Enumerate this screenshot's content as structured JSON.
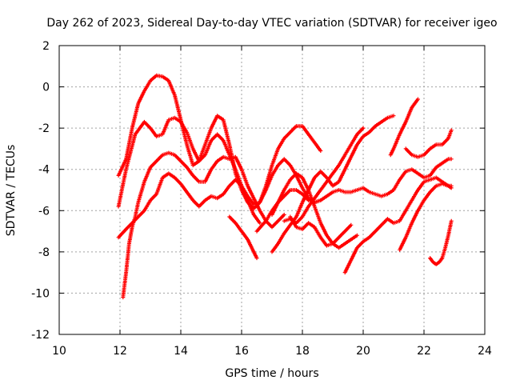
{
  "chart_data": {
    "type": "scatter",
    "title": "Day 262 of 2023, Sidereal Day-to-day VTEC variation (SDTVAR) for receiver igeo",
    "xlabel": "GPS time / hours",
    "ylabel": "SDTVAR / TECUs",
    "xlim": [
      10,
      24
    ],
    "ylim": [
      -12,
      2
    ],
    "xticks": [
      10,
      12,
      14,
      16,
      18,
      20,
      22,
      24
    ],
    "yticks": [
      2,
      0,
      -2,
      -4,
      -6,
      -8,
      -10,
      -12
    ],
    "grid": true,
    "marker": "plus",
    "color": "#ff0000",
    "series": [
      {
        "name": "trace-1",
        "x": [
          11.95,
          12.2,
          12.4,
          12.6,
          12.8,
          13.0,
          13.2,
          13.4,
          13.6,
          13.8,
          14.0,
          14.2,
          14.4,
          14.6,
          14.8,
          15.0,
          15.2,
          15.4,
          15.6,
          15.8,
          16.0,
          16.2,
          16.4,
          16.6,
          16.8,
          17.0,
          17.2,
          17.4,
          17.6,
          17.8,
          18.0,
          18.2,
          18.4,
          18.6
        ],
        "y": [
          -4.3,
          -3.5,
          -2.0,
          -0.8,
          -0.2,
          0.3,
          0.55,
          0.5,
          0.3,
          -0.4,
          -1.6,
          -2.8,
          -3.8,
          -3.6,
          -2.8,
          -2.0,
          -1.4,
          -1.6,
          -2.8,
          -4.2,
          -5.0,
          -5.6,
          -5.9,
          -5.6,
          -4.8,
          -3.8,
          -3.0,
          -2.5,
          -2.2,
          -1.9,
          -1.9,
          -2.3,
          -2.7,
          -3.1
        ]
      },
      {
        "name": "trace-2",
        "x": [
          11.95,
          12.2,
          12.5,
          12.8,
          13.0,
          13.2,
          13.4,
          13.6,
          13.8,
          14.0,
          14.2,
          14.4,
          14.6,
          14.8,
          15.0,
          15.2,
          15.4,
          15.6,
          15.8,
          16.0,
          16.2,
          16.4,
          16.6
        ],
        "y": [
          -5.8,
          -4.0,
          -2.3,
          -1.7,
          -2.0,
          -2.4,
          -2.3,
          -1.6,
          -1.5,
          -1.7,
          -2.2,
          -3.0,
          -3.6,
          -3.3,
          -2.6,
          -2.3,
          -2.6,
          -3.3,
          -4.0,
          -4.8,
          -5.5,
          -6.2,
          -6.6
        ]
      },
      {
        "name": "trace-3",
        "x": [
          11.95,
          12.2,
          12.4,
          12.6,
          12.8,
          13.0,
          13.2,
          13.4,
          13.6,
          13.8,
          14.0,
          14.2,
          14.4,
          14.6,
          14.8,
          15.0,
          15.2,
          15.4,
          15.6,
          15.8,
          16.0,
          16.2,
          16.4,
          16.6,
          16.8,
          17.0,
          17.2,
          17.4,
          17.6,
          17.8,
          18.0,
          18.2,
          18.4,
          18.6
        ],
        "y": [
          -7.3,
          -6.9,
          -6.6,
          -6.3,
          -6.0,
          -5.5,
          -5.2,
          -4.4,
          -4.2,
          -4.4,
          -4.7,
          -5.1,
          -5.5,
          -5.8,
          -5.5,
          -5.3,
          -5.4,
          -5.2,
          -4.8,
          -4.5,
          -4.8,
          -5.3,
          -5.7,
          -5.6,
          -5.0,
          -4.3,
          -3.8,
          -3.5,
          -3.8,
          -4.3,
          -4.9,
          -5.4,
          -5.6,
          -5.5
        ]
      },
      {
        "name": "trace-4",
        "x": [
          12.1,
          12.2,
          12.3,
          12.4,
          12.5,
          12.6,
          12.8,
          13.0,
          13.2,
          13.4,
          13.6,
          13.8,
          14.0,
          14.2,
          14.4,
          14.6,
          14.8,
          15.0,
          15.2,
          15.4,
          15.6,
          15.8,
          16.0,
          16.2,
          16.4,
          16.6,
          16.8,
          17.0,
          17.2,
          17.4
        ],
        "y": [
          -10.2,
          -9.0,
          -7.6,
          -6.8,
          -6.3,
          -5.6,
          -4.6,
          -3.9,
          -3.6,
          -3.3,
          -3.2,
          -3.3,
          -3.6,
          -3.9,
          -4.3,
          -4.6,
          -4.6,
          -4.0,
          -3.6,
          -3.4,
          -3.5,
          -3.4,
          -4.0,
          -4.8,
          -5.4,
          -6.0,
          -6.5,
          -6.8,
          -6.5,
          -6.2
        ]
      },
      {
        "name": "trace-5",
        "x": [
          15.6,
          15.8,
          16.0,
          16.2,
          16.4,
          16.5
        ],
        "y": [
          -6.3,
          -6.6,
          -7.0,
          -7.4,
          -8.0,
          -8.3
        ]
      },
      {
        "name": "trace-6",
        "x": [
          16.5,
          16.8,
          17.0,
          17.2,
          17.4,
          17.6,
          17.8,
          18.0,
          18.2,
          18.4,
          18.6,
          18.8,
          19.0,
          19.2,
          19.4,
          19.6,
          19.8,
          20.0,
          20.2,
          20.4,
          20.6,
          20.8,
          21.0,
          21.2,
          21.4,
          21.6,
          21.8,
          22.0,
          22.2,
          22.4,
          22.6,
          22.8,
          22.9
        ],
        "y": [
          -7.0,
          -6.5,
          -6.0,
          -5.6,
          -5.3,
          -5.0,
          -5.0,
          -5.2,
          -5.5,
          -5.6,
          -5.5,
          -5.3,
          -5.1,
          -5.0,
          -5.1,
          -5.1,
          -5.0,
          -4.9,
          -5.1,
          -5.2,
          -5.3,
          -5.2,
          -5.0,
          -4.5,
          -4.1,
          -4.0,
          -4.2,
          -4.4,
          -4.3,
          -3.9,
          -3.7,
          -3.5,
          -3.5
        ]
      },
      {
        "name": "trace-7",
        "x": [
          17.0,
          17.2,
          17.4,
          17.6,
          17.8,
          18.0,
          18.2,
          18.4,
          18.6,
          18.8,
          19.0,
          19.2,
          19.4,
          19.6,
          19.8,
          20.0,
          20.2,
          20.4,
          20.6,
          20.8,
          21.0
        ],
        "y": [
          -8.0,
          -7.6,
          -7.1,
          -6.7,
          -6.3,
          -5.6,
          -5.0,
          -4.4,
          -4.1,
          -4.4,
          -4.8,
          -4.6,
          -4.0,
          -3.4,
          -2.8,
          -2.4,
          -2.2,
          -1.9,
          -1.7,
          -1.5,
          -1.4
        ]
      },
      {
        "name": "trace-8",
        "x": [
          17.4,
          17.6,
          17.8,
          18.0,
          18.2,
          18.4,
          18.6,
          18.8,
          19.0,
          19.2,
          19.4,
          19.6,
          19.8,
          20.0
        ],
        "y": [
          -6.5,
          -6.4,
          -6.6,
          -6.3,
          -5.8,
          -5.4,
          -5.0,
          -4.6,
          -4.2,
          -3.8,
          -3.3,
          -2.8,
          -2.3,
          -2.0
        ]
      },
      {
        "name": "trace-9",
        "x": [
          17.6,
          17.8,
          18.0,
          18.2,
          18.4,
          18.6,
          18.8,
          19.0,
          19.2,
          19.4,
          19.6
        ],
        "y": [
          -6.3,
          -6.8,
          -6.9,
          -6.6,
          -6.8,
          -7.3,
          -7.7,
          -7.6,
          -7.3,
          -7.0,
          -6.7
        ]
      },
      {
        "name": "trace-10",
        "x": [
          17.0,
          17.2,
          17.4,
          17.6,
          17.8,
          18.0,
          18.2,
          18.4,
          18.6,
          18.8,
          19.0,
          19.2,
          19.4,
          19.6,
          19.8
        ],
        "y": [
          -6.2,
          -5.6,
          -5.0,
          -4.5,
          -4.2,
          -4.4,
          -5.0,
          -5.8,
          -6.6,
          -7.2,
          -7.6,
          -7.8,
          -7.6,
          -7.4,
          -7.2
        ]
      },
      {
        "name": "trace-11",
        "x": [
          19.4,
          19.6,
          19.8,
          20.0,
          20.2,
          20.4,
          20.6,
          20.8,
          21.0,
          21.2,
          21.4,
          21.6,
          21.8,
          22.0,
          22.2,
          22.4,
          22.6,
          22.8,
          22.9
        ],
        "y": [
          -9.0,
          -8.4,
          -7.8,
          -7.5,
          -7.3,
          -7.0,
          -6.7,
          -6.4,
          -6.6,
          -6.5,
          -6.0,
          -5.5,
          -5.0,
          -4.6,
          -4.5,
          -4.4,
          -4.6,
          -4.8,
          -4.9
        ]
      },
      {
        "name": "trace-12",
        "x": [
          21.2,
          21.4,
          21.6,
          21.8,
          22.0,
          22.2,
          22.4,
          22.6,
          22.8,
          22.9
        ],
        "y": [
          -7.9,
          -7.3,
          -6.6,
          -6.0,
          -5.5,
          -5.1,
          -4.8,
          -4.7,
          -4.8,
          -4.8
        ]
      },
      {
        "name": "trace-13",
        "x": [
          20.9,
          21.0,
          21.2,
          21.4,
          21.6,
          21.8
        ],
        "y": [
          -3.3,
          -3.0,
          -2.3,
          -1.7,
          -1.0,
          -0.6
        ]
      },
      {
        "name": "trace-14",
        "x": [
          21.4,
          21.6,
          21.8,
          22.0,
          22.2,
          22.4,
          22.6,
          22.8,
          22.9
        ],
        "y": [
          -3.0,
          -3.3,
          -3.4,
          -3.3,
          -3.0,
          -2.8,
          -2.8,
          -2.5,
          -2.1
        ]
      },
      {
        "name": "trace-15",
        "x": [
          22.2,
          22.3,
          22.4,
          22.5,
          22.6,
          22.7,
          22.8,
          22.9
        ],
        "y": [
          -8.3,
          -8.5,
          -8.6,
          -8.5,
          -8.3,
          -7.8,
          -7.2,
          -6.5
        ]
      }
    ]
  }
}
